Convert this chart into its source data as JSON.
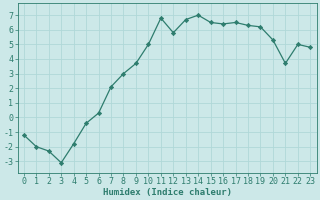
{
  "xlabel": "Humidex (Indice chaleur)",
  "ylabel": "",
  "x": [
    0,
    1,
    2,
    3,
    4,
    5,
    6,
    7,
    8,
    9,
    10,
    11,
    12,
    13,
    14,
    15,
    16,
    17,
    18,
    19,
    20,
    21,
    22,
    23
  ],
  "y": [
    -1.2,
    -2.0,
    -2.3,
    -3.1,
    -1.8,
    -0.4,
    0.3,
    2.1,
    3.0,
    3.7,
    5.0,
    6.8,
    5.8,
    6.7,
    7.0,
    6.5,
    6.4,
    6.5,
    6.3,
    6.2,
    5.3,
    3.7,
    5.0,
    4.8
  ],
  "line_color": "#2e7d6e",
  "marker": "D",
  "marker_size": 2.2,
  "bg_color": "#cce8e8",
  "grid_color": "#b0d8d8",
  "ylim": [
    -3.8,
    7.8
  ],
  "yticks": [
    -3,
    -2,
    -1,
    0,
    1,
    2,
    3,
    4,
    5,
    6,
    7
  ],
  "xlim": [
    -0.5,
    23.5
  ],
  "xticks": [
    0,
    1,
    2,
    3,
    4,
    5,
    6,
    7,
    8,
    9,
    10,
    11,
    12,
    13,
    14,
    15,
    16,
    17,
    18,
    19,
    20,
    21,
    22,
    23
  ],
  "axis_fontsize": 6.5,
  "tick_fontsize": 6.0,
  "line_width": 0.9
}
